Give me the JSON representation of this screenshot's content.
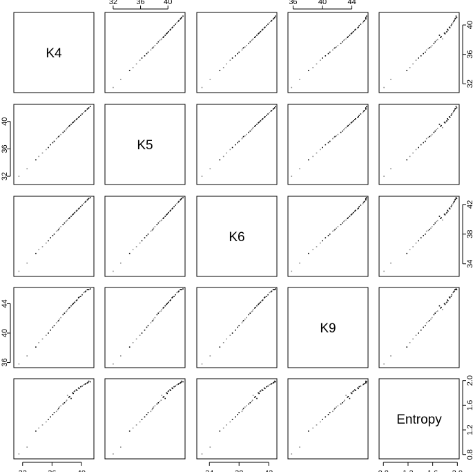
{
  "chart_data": {
    "type": "scatter",
    "variables": [
      "K4",
      "K5",
      "K6",
      "K9",
      "Entropy"
    ],
    "ranges": {
      "K4": [
        30.8,
        41.7
      ],
      "K5": [
        30.8,
        42.5
      ],
      "K6": [
        32.3,
        43.1
      ],
      "K9": [
        35.3,
        46.2
      ],
      "Entropy": [
        0.73,
        2.03
      ]
    },
    "ticks": {
      "K4": [
        32,
        36,
        40
      ],
      "K5": [
        32,
        36,
        40
      ],
      "K6": [
        34,
        38,
        42
      ],
      "K9": [
        36,
        40,
        44
      ],
      "Entropy": [
        0.8,
        1.2,
        1.6,
        2.0
      ]
    },
    "tick_labels": {
      "K4": [
        "32",
        "36",
        "40"
      ],
      "K5": [
        "32",
        "36",
        "40"
      ],
      "K6": [
        "34",
        "38",
        "42"
      ],
      "K9": [
        "36",
        "40",
        "44"
      ],
      "Entropy": [
        "0.8",
        "1.2",
        "1.6",
        "2.0"
      ]
    },
    "points": {
      "K4": [
        38.1,
        39.6,
        36.9,
        40.3,
        37.5,
        35.8,
        39.0,
        40.8,
        38.6,
        34.7,
        36.3,
        39.9,
        37.9,
        41.2,
        38.9,
        35.2,
        33.8,
        40.5,
        37.2,
        39.3,
        38.3,
        36.6,
        40.9,
        39.7,
        32.6,
        37.7,
        38.8,
        34.2,
        40.1,
        36.1,
        31.5,
        39.4,
        38.4,
        37.0,
        40.6,
        35.5,
        38.0,
        39.1,
        41.0,
        36.8
      ],
      "K5": [
        39.1,
        40.6,
        37.8,
        41.3,
        38.4,
        36.6,
        40.0,
        41.8,
        39.6,
        35.4,
        37.1,
        40.9,
        38.8,
        42.2,
        39.9,
        35.9,
        34.4,
        41.5,
        38.1,
        40.3,
        39.3,
        37.5,
        41.9,
        40.7,
        33.1,
        38.6,
        39.8,
        34.9,
        41.1,
        36.9,
        32.0,
        40.4,
        39.4,
        37.9,
        41.6,
        36.2,
        39.0,
        40.1,
        42.0,
        37.7
      ],
      "K6": [
        39.9,
        41.4,
        38.6,
        42.1,
        39.3,
        37.5,
        40.8,
        42.6,
        40.4,
        36.3,
        38.0,
        41.7,
        39.7,
        42.9,
        40.7,
        36.8,
        35.4,
        42.3,
        39.0,
        41.1,
        40.1,
        38.4,
        42.7,
        41.5,
        34.1,
        39.5,
        40.6,
        35.9,
        41.9,
        37.8,
        33.0,
        41.2,
        40.2,
        38.8,
        42.4,
        37.1,
        39.8,
        40.9,
        42.8,
        38.5
      ],
      "K9": [
        43.2,
        44.8,
        41.7,
        45.5,
        42.5,
        40.4,
        44.1,
        45.9,
        43.7,
        39.2,
        41.0,
        45.0,
        42.9,
        46.0,
        44.0,
        39.7,
        38.1,
        45.6,
        42.1,
        44.4,
        43.4,
        41.4,
        45.9,
        44.9,
        36.9,
        42.7,
        43.9,
        38.7,
        45.2,
        40.8,
        35.8,
        44.5,
        43.5,
        41.9,
        45.7,
        40.0,
        43.0,
        44.2,
        45.9,
        41.6
      ],
      "Entropy": [
        1.76,
        1.88,
        1.55,
        1.93,
        1.62,
        1.41,
        1.82,
        1.96,
        1.71,
        1.28,
        1.48,
        1.9,
        1.66,
        1.98,
        1.79,
        1.33,
        1.18,
        1.94,
        1.59,
        1.85,
        1.73,
        1.5,
        1.97,
        1.87,
        0.92,
        1.64,
        1.8,
        1.23,
        1.91,
        1.45,
        0.81,
        1.84,
        1.74,
        1.57,
        1.95,
        1.37,
        1.68,
        1.83,
        1.99,
        1.53
      ]
    },
    "grid": false,
    "legend": "none"
  }
}
